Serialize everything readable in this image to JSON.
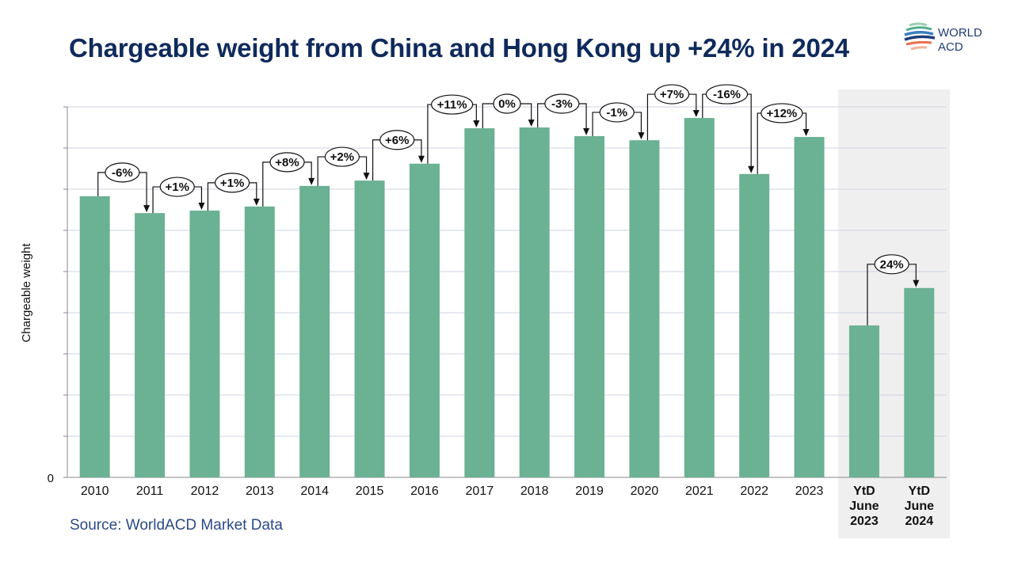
{
  "title": "Chargeable weight from China and Hong Kong up +24% in 2024",
  "source": "Source: WorldACD Market Data",
  "logo": {
    "line1": "WORLD",
    "line2": "ACD"
  },
  "colors": {
    "bar": "#6bb193",
    "title": "#0f2a5c",
    "highlight_bg": "#efefef"
  },
  "chart_data": {
    "type": "bar",
    "title": "Chargeable weight from China and Hong Kong up +24% in 2024",
    "xlabel": "",
    "ylabel": "Chargeable weight",
    "y_tick_labels": [
      "0"
    ],
    "ylim": [
      0,
      9
    ],
    "grid": true,
    "categories": [
      [
        "2010"
      ],
      [
        "2011"
      ],
      [
        "2012"
      ],
      [
        "2013"
      ],
      [
        "2014"
      ],
      [
        "2015"
      ],
      [
        "2016"
      ],
      [
        "2017"
      ],
      [
        "2018"
      ],
      [
        "2019"
      ],
      [
        "2020"
      ],
      [
        "2021"
      ],
      [
        "2022"
      ],
      [
        "2023"
      ],
      [
        "YtD",
        "June",
        "2023"
      ],
      [
        "YtD",
        "June",
        "2024"
      ]
    ],
    "values": [
      6.83,
      6.42,
      6.48,
      6.58,
      7.08,
      7.21,
      7.62,
      8.48,
      8.5,
      8.29,
      8.19,
      8.73,
      7.37,
      8.27,
      3.69,
      4.6
    ],
    "highlighted_categories": [
      14,
      15
    ],
    "annotations": [
      {
        "from": 0,
        "to": 1,
        "label": "-6%"
      },
      {
        "from": 1,
        "to": 2,
        "label": "+1%"
      },
      {
        "from": 2,
        "to": 3,
        "label": "+1%"
      },
      {
        "from": 3,
        "to": 4,
        "label": "+8%"
      },
      {
        "from": 4,
        "to": 5,
        "label": "+2%"
      },
      {
        "from": 5,
        "to": 6,
        "label": "+6%"
      },
      {
        "from": 6,
        "to": 7,
        "label": "+11%"
      },
      {
        "from": 7,
        "to": 8,
        "label": "0%"
      },
      {
        "from": 8,
        "to": 9,
        "label": "-3%"
      },
      {
        "from": 9,
        "to": 10,
        "label": "-1%"
      },
      {
        "from": 10,
        "to": 11,
        "label": "+7%"
      },
      {
        "from": 11,
        "to": 12,
        "label": "-16%"
      },
      {
        "from": 12,
        "to": 13,
        "label": "+12%"
      },
      {
        "from": 14,
        "to": 15,
        "label": "24%"
      }
    ]
  }
}
